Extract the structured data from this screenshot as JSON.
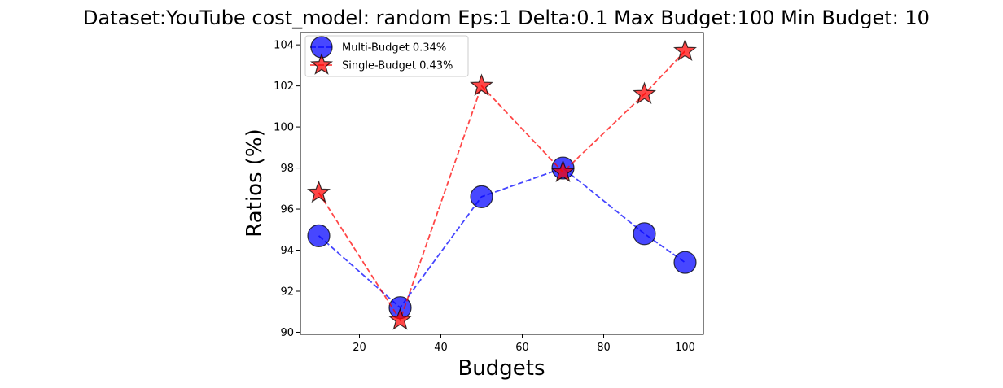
{
  "chart_data": {
    "type": "line",
    "title": "Dataset:YouTube cost_model: random Eps:1 Delta:0.1 Max Budget:100 Min Budget: 10",
    "xlabel": "Budgets",
    "ylabel": "Ratios (%)",
    "xlim": [
      5.5,
      104.5
    ],
    "ylim": [
      89.9,
      104.6
    ],
    "xticks": [
      20,
      40,
      60,
      80,
      100
    ],
    "yticks": [
      90,
      92,
      94,
      96,
      98,
      100,
      102,
      104
    ],
    "grid": false,
    "legend_position": "top-left",
    "x": [
      10,
      30,
      50,
      70,
      90,
      100
    ],
    "series": [
      {
        "name": "Multi-Budget 0.34%",
        "values": [
          94.7,
          91.2,
          96.6,
          98.0,
          94.8,
          93.4
        ],
        "color": "#0000ff",
        "marker": "circle",
        "line_style": "dashed"
      },
      {
        "name": "Single-Budget 0.43%",
        "values": [
          96.8,
          90.6,
          102.0,
          97.8,
          101.6,
          103.7
        ],
        "color": "#ff0000",
        "marker": "star",
        "line_style": "dashed"
      }
    ]
  }
}
